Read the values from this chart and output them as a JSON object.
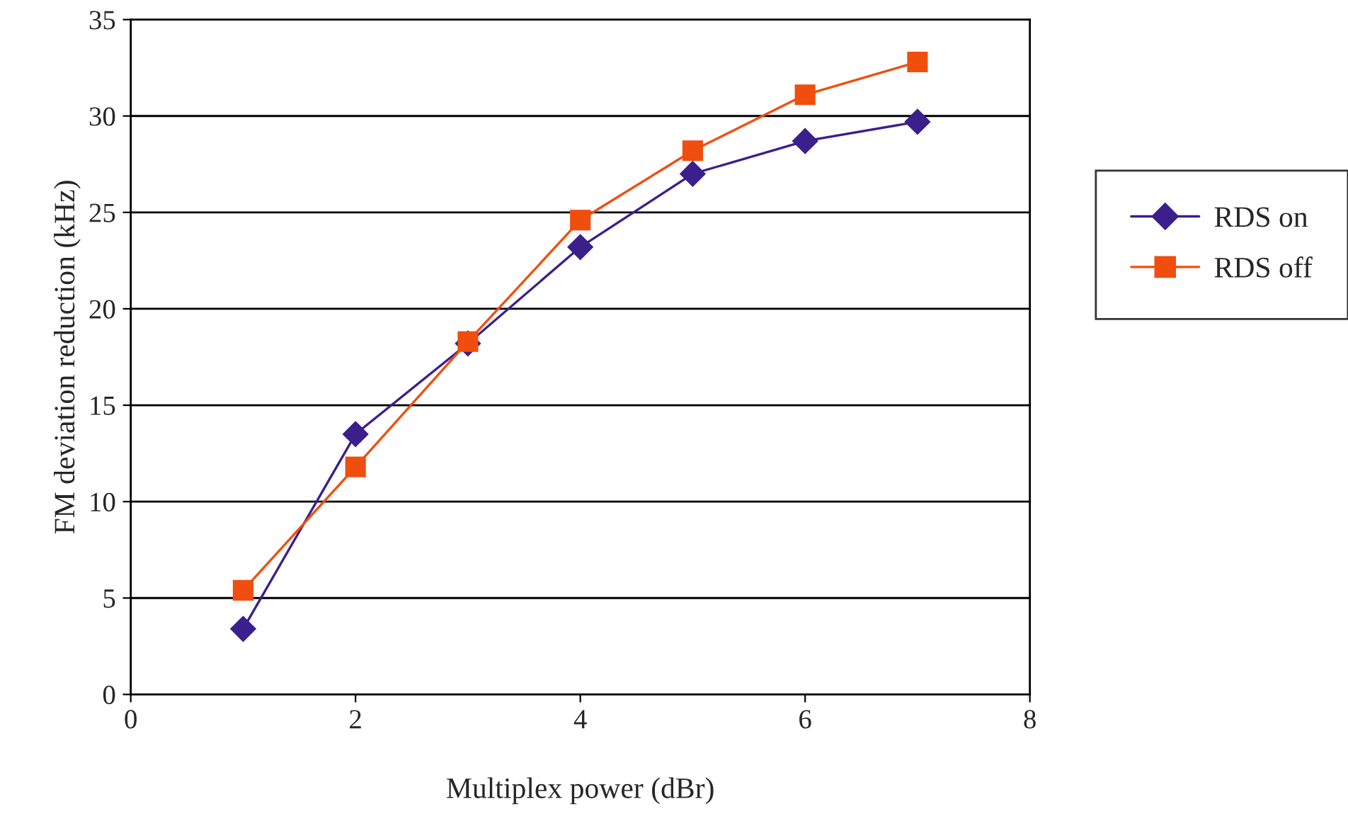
{
  "chart_data": {
    "type": "line",
    "xlabel": "Multiplex power (dBr)",
    "ylabel": "FM deviation reduction (kHz)",
    "xlim": [
      0,
      8
    ],
    "xticks": [
      0,
      2,
      4,
      6,
      8
    ],
    "ylim": [
      0,
      35
    ],
    "yticks": [
      0,
      5,
      10,
      15,
      20,
      25,
      30,
      35
    ],
    "grid": "y",
    "legend": "right",
    "line_style": "solid",
    "series": [
      {
        "name": "RDS on",
        "color": "#3b1f8c",
        "marker": "diamond",
        "x": [
          1,
          2,
          3,
          4,
          5,
          6,
          7
        ],
        "values": [
          3.4,
          13.5,
          18.2,
          23.2,
          27.0,
          28.7,
          29.7
        ]
      },
      {
        "name": "RDS off",
        "color": "#f04e0f",
        "marker": "square",
        "x": [
          1,
          2,
          3,
          4,
          5,
          6,
          7
        ],
        "values": [
          5.4,
          11.8,
          18.3,
          24.6,
          28.2,
          31.1,
          32.8
        ]
      }
    ]
  }
}
